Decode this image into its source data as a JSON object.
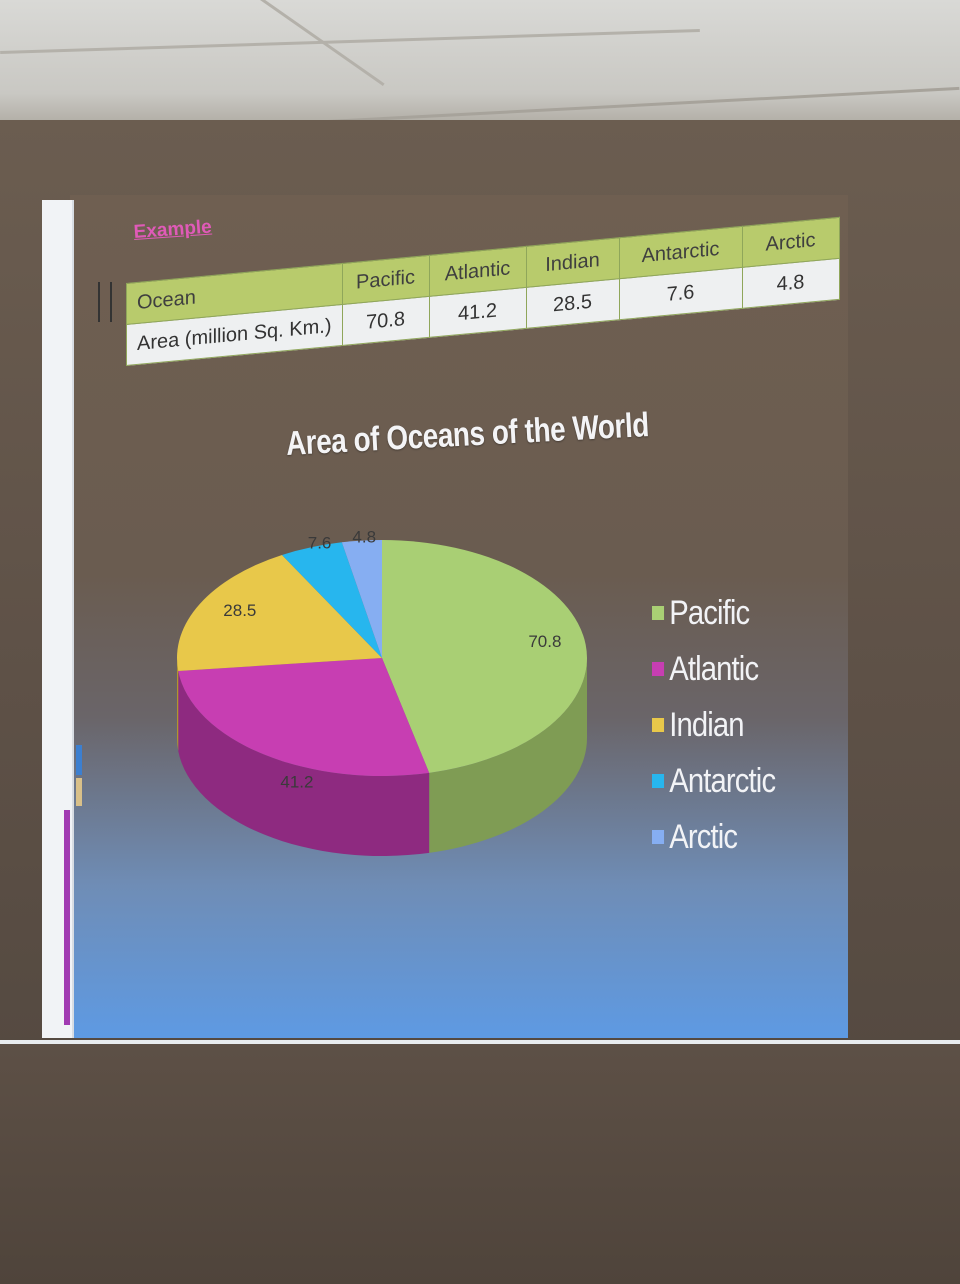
{
  "slide": {
    "example_label": "Example",
    "table": {
      "header_label": "Ocean",
      "row_label": "Area (million Sq. Km.)",
      "columns": [
        {
          "name": "Pacific",
          "value": "70.8"
        },
        {
          "name": "Atlantic",
          "value": "41.2"
        },
        {
          "name": "Indian",
          "value": "28.5"
        },
        {
          "name": "Antarctic",
          "value": "7.6"
        },
        {
          "name": "Arctic",
          "value": "4.8"
        }
      ]
    }
  },
  "chart_data": {
    "type": "pie",
    "title": "Area of Oceans of the World",
    "categories": [
      "Pacific",
      "Atlantic",
      "Indian",
      "Antarctic",
      "Arctic"
    ],
    "values": [
      70.8,
      41.2,
      28.5,
      7.6,
      4.8
    ],
    "data_labels": [
      "70.8",
      "41.2",
      "28.5",
      "7.6",
      "4.8"
    ],
    "colors": [
      "#a9cf74",
      "#c73eb2",
      "#e8c84a",
      "#27b6ee",
      "#86aef2"
    ],
    "side_colors": [
      "#7f9c54",
      "#8e2a80",
      "#b1952f",
      "#1a8bb6",
      "#6384bd"
    ],
    "legend": "right",
    "style": "3d"
  }
}
